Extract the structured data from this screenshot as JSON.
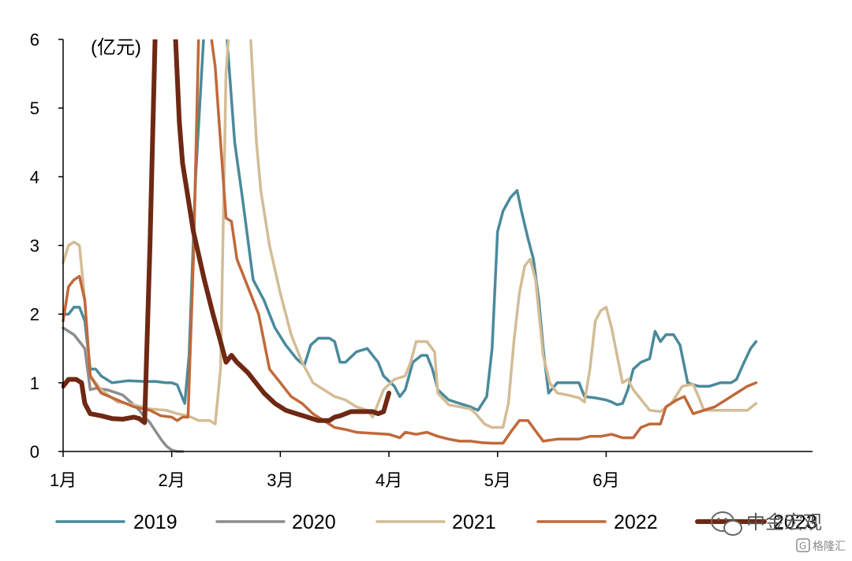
{
  "chart_data": {
    "type": "line",
    "unit_label": "(亿元)",
    "y_ticks": [
      "0",
      "1",
      "2",
      "3",
      "4",
      "5",
      "6"
    ],
    "ylim": [
      0,
      6
    ],
    "x_domain": [
      0,
      6.9
    ],
    "x_ticks": [
      {
        "label": "1月",
        "pos": 0
      },
      {
        "label": "2月",
        "pos": 1
      },
      {
        "label": "3月",
        "pos": 2
      },
      {
        "label": "4月",
        "pos": 3
      },
      {
        "label": "5月",
        "pos": 4
      },
      {
        "label": "6月",
        "pos": 5
      }
    ],
    "grid": false,
    "legend_position": "bottom",
    "series": [
      {
        "name": "2019",
        "color": "#4a8a9c",
        "width": 3.5,
        "points": [
          [
            0,
            2.0
          ],
          [
            0.05,
            2.0
          ],
          [
            0.1,
            2.1
          ],
          [
            0.15,
            2.1
          ],
          [
            0.2,
            1.9
          ],
          [
            0.25,
            1.2
          ],
          [
            0.3,
            1.2
          ],
          [
            0.35,
            1.1
          ],
          [
            0.45,
            1.0
          ],
          [
            0.6,
            1.03
          ],
          [
            0.75,
            1.02
          ],
          [
            0.85,
            1.02
          ],
          [
            0.95,
            1.0
          ],
          [
            1.0,
            1.0
          ],
          [
            1.05,
            0.97
          ],
          [
            1.12,
            0.7
          ],
          [
            1.16,
            1.4
          ],
          [
            1.22,
            4.0
          ],
          [
            1.3,
            6.2
          ],
          [
            1.5,
            6.2
          ],
          [
            1.58,
            4.5
          ],
          [
            1.65,
            3.7
          ],
          [
            1.75,
            2.5
          ],
          [
            1.85,
            2.2
          ],
          [
            1.95,
            1.8
          ],
          [
            2.05,
            1.55
          ],
          [
            2.15,
            1.35
          ],
          [
            2.22,
            1.25
          ],
          [
            2.28,
            1.55
          ],
          [
            2.35,
            1.65
          ],
          [
            2.45,
            1.65
          ],
          [
            2.5,
            1.6
          ],
          [
            2.55,
            1.3
          ],
          [
            2.6,
            1.3
          ],
          [
            2.7,
            1.45
          ],
          [
            2.8,
            1.5
          ],
          [
            2.9,
            1.3
          ],
          [
            2.95,
            1.1
          ],
          [
            3.05,
            0.95
          ],
          [
            3.1,
            0.8
          ],
          [
            3.15,
            0.9
          ],
          [
            3.22,
            1.3
          ],
          [
            3.3,
            1.4
          ],
          [
            3.35,
            1.4
          ],
          [
            3.4,
            1.2
          ],
          [
            3.45,
            0.9
          ],
          [
            3.55,
            0.75
          ],
          [
            3.65,
            0.7
          ],
          [
            3.75,
            0.65
          ],
          [
            3.82,
            0.6
          ],
          [
            3.9,
            0.8
          ],
          [
            3.95,
            1.5
          ],
          [
            4.0,
            3.2
          ],
          [
            4.05,
            3.5
          ],
          [
            4.12,
            3.7
          ],
          [
            4.18,
            3.8
          ],
          [
            4.22,
            3.5
          ],
          [
            4.28,
            3.1
          ],
          [
            4.33,
            2.8
          ],
          [
            4.38,
            2.2
          ],
          [
            4.42,
            1.5
          ],
          [
            4.47,
            0.85
          ],
          [
            4.55,
            1.0
          ],
          [
            4.65,
            1.0
          ],
          [
            4.75,
            1.0
          ],
          [
            4.8,
            0.8
          ],
          [
            4.9,
            0.78
          ],
          [
            5.0,
            0.75
          ],
          [
            5.05,
            0.72
          ],
          [
            5.1,
            0.68
          ],
          [
            5.15,
            0.7
          ],
          [
            5.2,
            0.9
          ],
          [
            5.25,
            1.2
          ],
          [
            5.32,
            1.3
          ],
          [
            5.4,
            1.35
          ],
          [
            5.45,
            1.75
          ],
          [
            5.5,
            1.6
          ],
          [
            5.55,
            1.7
          ],
          [
            5.62,
            1.7
          ],
          [
            5.68,
            1.55
          ],
          [
            5.75,
            1.0
          ],
          [
            5.85,
            0.95
          ],
          [
            5.95,
            0.95
          ],
          [
            6.05,
            1.0
          ],
          [
            6.15,
            1.0
          ],
          [
            6.2,
            1.05
          ],
          [
            6.27,
            1.3
          ],
          [
            6.33,
            1.5
          ],
          [
            6.38,
            1.6
          ]
        ]
      },
      {
        "name": "2020",
        "color": "#8d8d8d",
        "width": 3.5,
        "points": [
          [
            0,
            1.8
          ],
          [
            0.05,
            1.75
          ],
          [
            0.1,
            1.7
          ],
          [
            0.15,
            1.6
          ],
          [
            0.2,
            1.5
          ],
          [
            0.25,
            0.9
          ],
          [
            0.3,
            0.92
          ],
          [
            0.4,
            0.9
          ],
          [
            0.5,
            0.85
          ],
          [
            0.55,
            0.82
          ],
          [
            0.6,
            0.75
          ],
          [
            0.65,
            0.68
          ],
          [
            0.7,
            0.6
          ],
          [
            0.75,
            0.5
          ],
          [
            0.8,
            0.42
          ],
          [
            0.85,
            0.3
          ],
          [
            0.9,
            0.18
          ],
          [
            0.95,
            0.08
          ],
          [
            1.0,
            0.02
          ],
          [
            1.05,
            0.0
          ],
          [
            1.1,
            0.0
          ]
        ]
      },
      {
        "name": "2021",
        "color": "#d3bc96",
        "width": 3.5,
        "points": [
          [
            0,
            2.75
          ],
          [
            0.05,
            3.0
          ],
          [
            0.1,
            3.05
          ],
          [
            0.15,
            3.0
          ],
          [
            0.2,
            2.2
          ],
          [
            0.25,
            1.1
          ],
          [
            0.35,
            0.9
          ],
          [
            0.5,
            0.72
          ],
          [
            0.65,
            0.68
          ],
          [
            0.8,
            0.62
          ],
          [
            0.95,
            0.6
          ],
          [
            1.05,
            0.55
          ],
          [
            1.15,
            0.52
          ],
          [
            1.25,
            0.45
          ],
          [
            1.35,
            0.45
          ],
          [
            1.4,
            0.4
          ],
          [
            1.45,
            1.2
          ],
          [
            1.5,
            5.5
          ],
          [
            1.53,
            6.2
          ],
          [
            1.72,
            6.2
          ],
          [
            1.78,
            4.5
          ],
          [
            1.82,
            3.8
          ],
          [
            1.9,
            3.0
          ],
          [
            2.0,
            2.3
          ],
          [
            2.1,
            1.7
          ],
          [
            2.2,
            1.3
          ],
          [
            2.3,
            1.0
          ],
          [
            2.4,
            0.9
          ],
          [
            2.5,
            0.8
          ],
          [
            2.6,
            0.75
          ],
          [
            2.65,
            0.7
          ],
          [
            2.7,
            0.65
          ],
          [
            2.8,
            0.6
          ],
          [
            2.85,
            0.5
          ],
          [
            2.95,
            0.9
          ],
          [
            3.05,
            1.05
          ],
          [
            3.15,
            1.1
          ],
          [
            3.2,
            1.3
          ],
          [
            3.25,
            1.6
          ],
          [
            3.35,
            1.6
          ],
          [
            3.42,
            1.45
          ],
          [
            3.45,
            0.85
          ],
          [
            3.55,
            0.68
          ],
          [
            3.65,
            0.65
          ],
          [
            3.75,
            0.62
          ],
          [
            3.8,
            0.55
          ],
          [
            3.88,
            0.4
          ],
          [
            3.95,
            0.35
          ],
          [
            4.05,
            0.35
          ],
          [
            4.1,
            0.7
          ],
          [
            4.15,
            1.6
          ],
          [
            4.2,
            2.3
          ],
          [
            4.25,
            2.7
          ],
          [
            4.3,
            2.8
          ],
          [
            4.35,
            2.5
          ],
          [
            4.42,
            1.4
          ],
          [
            4.48,
            1.0
          ],
          [
            4.55,
            0.85
          ],
          [
            4.65,
            0.82
          ],
          [
            4.75,
            0.78
          ],
          [
            4.8,
            0.72
          ],
          [
            4.85,
            1.2
          ],
          [
            4.9,
            1.9
          ],
          [
            4.95,
            2.05
          ],
          [
            5.0,
            2.1
          ],
          [
            5.05,
            1.8
          ],
          [
            5.1,
            1.4
          ],
          [
            5.15,
            1.0
          ],
          [
            5.2,
            1.05
          ],
          [
            5.25,
            0.9
          ],
          [
            5.3,
            0.8
          ],
          [
            5.35,
            0.7
          ],
          [
            5.4,
            0.6
          ],
          [
            5.5,
            0.58
          ],
          [
            5.6,
            0.7
          ],
          [
            5.7,
            0.95
          ],
          [
            5.8,
            0.98
          ],
          [
            5.85,
            0.8
          ],
          [
            5.9,
            0.6
          ],
          [
            6.0,
            0.6
          ],
          [
            6.1,
            0.6
          ],
          [
            6.2,
            0.6
          ],
          [
            6.3,
            0.6
          ],
          [
            6.38,
            0.7
          ]
        ]
      },
      {
        "name": "2022",
        "color": "#c0693a",
        "width": 3.5,
        "points": [
          [
            0,
            1.9
          ],
          [
            0.05,
            2.4
          ],
          [
            0.1,
            2.5
          ],
          [
            0.15,
            2.55
          ],
          [
            0.2,
            2.2
          ],
          [
            0.25,
            1.1
          ],
          [
            0.35,
            0.85
          ],
          [
            0.5,
            0.75
          ],
          [
            0.65,
            0.65
          ],
          [
            0.8,
            0.6
          ],
          [
            0.9,
            0.52
          ],
          [
            1.0,
            0.5
          ],
          [
            1.05,
            0.45
          ],
          [
            1.1,
            0.5
          ],
          [
            1.15,
            0.5
          ],
          [
            1.2,
            2.8
          ],
          [
            1.25,
            6.2
          ],
          [
            1.35,
            6.2
          ],
          [
            1.4,
            5.6
          ],
          [
            1.45,
            4.5
          ],
          [
            1.5,
            3.4
          ],
          [
            1.55,
            3.35
          ],
          [
            1.6,
            2.8
          ],
          [
            1.7,
            2.4
          ],
          [
            1.8,
            2.0
          ],
          [
            1.85,
            1.6
          ],
          [
            1.9,
            1.2
          ],
          [
            2.0,
            1.0
          ],
          [
            2.1,
            0.8
          ],
          [
            2.2,
            0.7
          ],
          [
            2.3,
            0.55
          ],
          [
            2.4,
            0.45
          ],
          [
            2.5,
            0.35
          ],
          [
            2.6,
            0.32
          ],
          [
            2.7,
            0.28
          ],
          [
            2.8,
            0.27
          ],
          [
            3.0,
            0.25
          ],
          [
            3.1,
            0.2
          ],
          [
            3.15,
            0.28
          ],
          [
            3.25,
            0.25
          ],
          [
            3.35,
            0.28
          ],
          [
            3.45,
            0.22
          ],
          [
            3.55,
            0.18
          ],
          [
            3.65,
            0.15
          ],
          [
            3.75,
            0.15
          ],
          [
            3.85,
            0.13
          ],
          [
            3.95,
            0.12
          ],
          [
            4.05,
            0.12
          ],
          [
            4.12,
            0.28
          ],
          [
            4.2,
            0.45
          ],
          [
            4.28,
            0.45
          ],
          [
            4.35,
            0.3
          ],
          [
            4.42,
            0.15
          ],
          [
            4.55,
            0.18
          ],
          [
            4.65,
            0.18
          ],
          [
            4.75,
            0.18
          ],
          [
            4.85,
            0.22
          ],
          [
            4.95,
            0.22
          ],
          [
            5.05,
            0.25
          ],
          [
            5.15,
            0.2
          ],
          [
            5.25,
            0.2
          ],
          [
            5.32,
            0.35
          ],
          [
            5.4,
            0.4
          ],
          [
            5.5,
            0.4
          ],
          [
            5.55,
            0.65
          ],
          [
            5.65,
            0.75
          ],
          [
            5.72,
            0.8
          ],
          [
            5.8,
            0.55
          ],
          [
            5.9,
            0.6
          ],
          [
            6.0,
            0.65
          ],
          [
            6.1,
            0.75
          ],
          [
            6.2,
            0.85
          ],
          [
            6.3,
            0.95
          ],
          [
            6.38,
            1.0
          ]
        ]
      },
      {
        "name": "2023",
        "color": "#6e2813",
        "width": 6,
        "points": [
          [
            0,
            0.95
          ],
          [
            0.05,
            1.05
          ],
          [
            0.12,
            1.05
          ],
          [
            0.17,
            1.0
          ],
          [
            0.2,
            0.7
          ],
          [
            0.25,
            0.55
          ],
          [
            0.35,
            0.52
          ],
          [
            0.45,
            0.48
          ],
          [
            0.55,
            0.47
          ],
          [
            0.65,
            0.5
          ],
          [
            0.7,
            0.48
          ],
          [
            0.75,
            0.42
          ],
          [
            0.8,
            3.0
          ],
          [
            0.85,
            6.2
          ],
          [
            1.03,
            6.2
          ],
          [
            1.07,
            4.8
          ],
          [
            1.1,
            4.2
          ],
          [
            1.15,
            3.7
          ],
          [
            1.2,
            3.2
          ],
          [
            1.3,
            2.5
          ],
          [
            1.38,
            2.0
          ],
          [
            1.45,
            1.6
          ],
          [
            1.5,
            1.3
          ],
          [
            1.55,
            1.4
          ],
          [
            1.6,
            1.3
          ],
          [
            1.7,
            1.15
          ],
          [
            1.8,
            0.95
          ],
          [
            1.85,
            0.85
          ],
          [
            1.95,
            0.7
          ],
          [
            2.05,
            0.6
          ],
          [
            2.15,
            0.55
          ],
          [
            2.25,
            0.5
          ],
          [
            2.35,
            0.45
          ],
          [
            2.45,
            0.45
          ],
          [
            2.5,
            0.5
          ],
          [
            2.55,
            0.52
          ],
          [
            2.65,
            0.58
          ],
          [
            2.75,
            0.58
          ],
          [
            2.85,
            0.58
          ],
          [
            2.9,
            0.55
          ],
          [
            2.95,
            0.58
          ],
          [
            3.0,
            0.85
          ]
        ]
      }
    ]
  },
  "watermark": {
    "main_text": "中金宏观",
    "sub_text": "格隆汇"
  }
}
